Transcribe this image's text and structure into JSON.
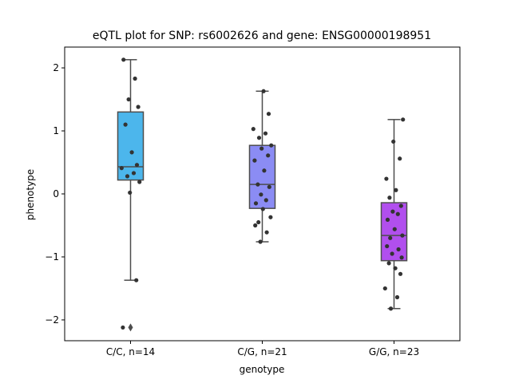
{
  "chart_data": {
    "type": "box",
    "title": "eQTL plot for SNP: rs6002626 and gene: ENSG00000198951",
    "xlabel": "genotype",
    "ylabel": "phenotype",
    "ylim": [
      -2.33,
      2.33
    ],
    "yticks": [
      -2,
      -1,
      0,
      1,
      2
    ],
    "yticklabels": [
      "−2",
      "−1",
      "0",
      "1",
      "2"
    ],
    "categories": [
      "C/C, n=14",
      "C/G, n=21",
      "G/G, n=23"
    ],
    "colors": [
      "#4cb6ec",
      "#8b8cf4",
      "#b14fee"
    ],
    "boxes": [
      {
        "category": "C/C, n=14",
        "q1": 0.22,
        "median": 0.43,
        "q3": 1.3,
        "whisker_low": -1.37,
        "whisker_high": 2.13,
        "outliers": [
          -2.12
        ]
      },
      {
        "category": "C/G, n=21",
        "q1": -0.23,
        "median": 0.15,
        "q3": 0.77,
        "whisker_low": -0.76,
        "whisker_high": 1.63,
        "outliers": []
      },
      {
        "category": "G/G, n=23",
        "q1": -1.06,
        "median": -0.66,
        "q3": -0.14,
        "whisker_low": -1.82,
        "whisker_high": 1.18,
        "outliers": []
      }
    ],
    "points": [
      {
        "category": "C/C, n=14",
        "values": [
          2.13,
          1.83,
          1.5,
          1.38,
          1.1,
          0.66,
          0.46,
          0.41,
          0.33,
          0.28,
          0.19,
          0.02,
          -1.37,
          -2.12
        ]
      },
      {
        "category": "C/G, n=21",
        "values": [
          1.63,
          1.27,
          1.03,
          0.96,
          0.89,
          0.77,
          0.72,
          0.61,
          0.53,
          0.37,
          0.15,
          0.11,
          -0.01,
          -0.1,
          -0.15,
          -0.24,
          -0.37,
          -0.45,
          -0.5,
          -0.61,
          -0.76
        ]
      },
      {
        "category": "G/G, n=23",
        "values": [
          1.18,
          0.83,
          0.56,
          0.24,
          0.06,
          -0.06,
          -0.19,
          -0.28,
          -0.32,
          -0.41,
          -0.56,
          -0.66,
          -0.7,
          -0.83,
          -0.88,
          -0.95,
          -1.01,
          -1.1,
          -1.18,
          -1.27,
          -1.5,
          -1.64,
          -1.82
        ]
      }
    ]
  }
}
